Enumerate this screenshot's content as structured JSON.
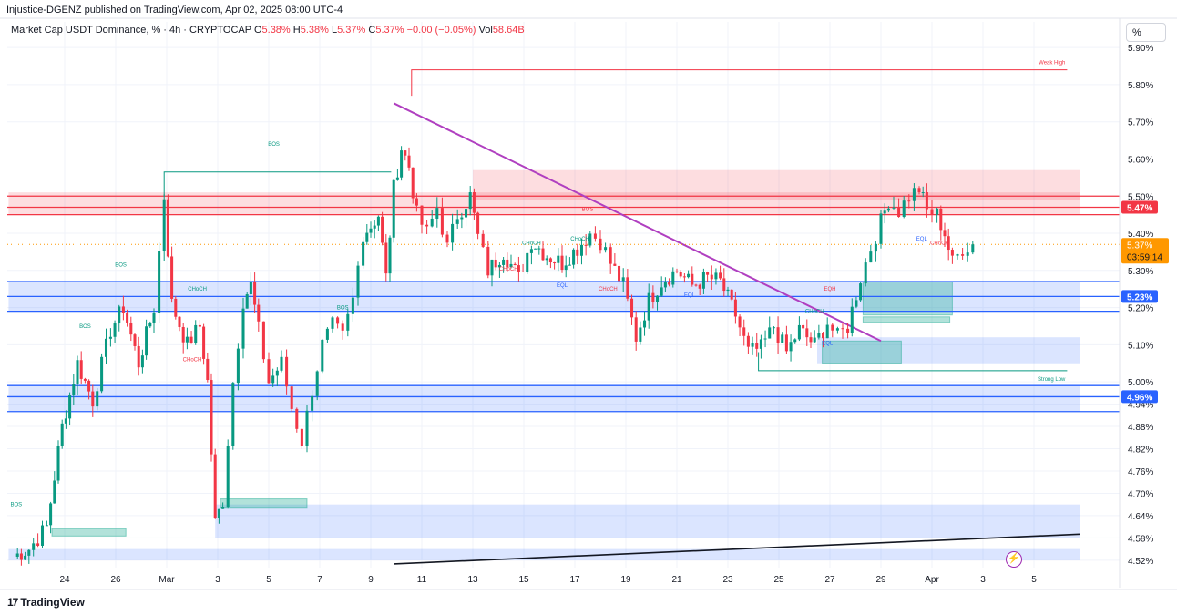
{
  "header": {
    "published": "Injustice-DGENZ published on TradingView.com, Apr 02, 2025 08:00 UTC-4"
  },
  "legend": {
    "title": "Market Cap USDT Dominance, % · 4h · CRYPTOCAP",
    "o_label": "O",
    "o_value": "5.38%",
    "h_label": "H",
    "h_value": "5.38%",
    "l_label": "L",
    "l_value": "5.37%",
    "c_label": "C",
    "c_value": "5.37%",
    "change": "−0.00 (−0.05%)",
    "vol_label": "Vol",
    "vol_value": "58.64B"
  },
  "scale_button": "%",
  "footer": {
    "logo_text": "TradingView",
    "logo_mark": "17"
  },
  "colors": {
    "up": "#089981",
    "down": "#f23645",
    "supply_zone": "#f23645",
    "demand_zone": "#2962ff",
    "trendline": "#b03fc0",
    "support_line": "#131722",
    "price_badge": "#f23645",
    "current_badge": "#ff9800",
    "blue_badge": "#2962ff"
  },
  "chart_data": {
    "type": "candlestick",
    "symbol": "USDT.D",
    "timeframe": "4h",
    "ylim": [
      4.5,
      5.92
    ],
    "y_ticks": [
      {
        "v": 4.52,
        "label": "4.52%"
      },
      {
        "v": 4.58,
        "label": "4.58%"
      },
      {
        "v": 4.64,
        "label": "4.64%"
      },
      {
        "v": 4.7,
        "label": "4.70%"
      },
      {
        "v": 4.76,
        "label": "4.76%"
      },
      {
        "v": 4.82,
        "label": "4.82%"
      },
      {
        "v": 4.88,
        "label": "4.88%"
      },
      {
        "v": 4.94,
        "label": "4.94%"
      },
      {
        "v": 5.0,
        "label": "5.00%"
      },
      {
        "v": 5.1,
        "label": "5.10%"
      },
      {
        "v": 5.2,
        "label": "5.20%"
      },
      {
        "v": 5.3,
        "label": "5.30%"
      },
      {
        "v": 5.4,
        "label": "5.40%"
      },
      {
        "v": 5.5,
        "label": "5.50%"
      },
      {
        "v": 5.6,
        "label": "5.60%"
      },
      {
        "v": 5.7,
        "label": "5.70%"
      },
      {
        "v": 5.8,
        "label": "5.80%"
      },
      {
        "v": 5.9,
        "label": "5.90%"
      }
    ],
    "x_ticks": [
      {
        "day": 24,
        "label": "24"
      },
      {
        "day": 26,
        "label": "26"
      },
      {
        "day": 28,
        "label": "Mar"
      },
      {
        "day": 30,
        "label": "3"
      },
      {
        "day": 32,
        "label": "5"
      },
      {
        "day": 34,
        "label": "7"
      },
      {
        "day": 36,
        "label": "9"
      },
      {
        "day": 38,
        "label": "11"
      },
      {
        "day": 40,
        "label": "13"
      },
      {
        "day": 42,
        "label": "15"
      },
      {
        "day": 44,
        "label": "17"
      },
      {
        "day": 46,
        "label": "19"
      },
      {
        "day": 48,
        "label": "21"
      },
      {
        "day": 50,
        "label": "23"
      },
      {
        "day": 52,
        "label": "25"
      },
      {
        "day": 54,
        "label": "27"
      },
      {
        "day": 56,
        "label": "29"
      },
      {
        "day": 58,
        "label": "Apr"
      },
      {
        "day": 60,
        "label": "3"
      },
      {
        "day": 62,
        "label": "5"
      }
    ],
    "price_anchors": [
      [
        22.0,
        4.53
      ],
      [
        22.6,
        4.55
      ],
      [
        23.3,
        4.61
      ],
      [
        23.9,
        4.88
      ],
      [
        24.5,
        5.05
      ],
      [
        25.1,
        4.95
      ],
      [
        25.8,
        5.14
      ],
      [
        26.3,
        5.2
      ],
      [
        26.9,
        5.05
      ],
      [
        27.5,
        5.2
      ],
      [
        27.9,
        5.5
      ],
      [
        28.2,
        5.21
      ],
      [
        28.8,
        5.1
      ],
      [
        29.3,
        5.15
      ],
      [
        29.6,
        5.0
      ],
      [
        29.9,
        4.62
      ],
      [
        30.2,
        4.68
      ],
      [
        30.6,
        5.0
      ],
      [
        31.0,
        5.22
      ],
      [
        31.3,
        5.26
      ],
      [
        31.6,
        5.14
      ],
      [
        32.0,
        5.0
      ],
      [
        32.5,
        5.05
      ],
      [
        32.9,
        4.93
      ],
      [
        33.3,
        4.84
      ],
      [
        33.7,
        4.98
      ],
      [
        34.1,
        5.1
      ],
      [
        34.5,
        5.15
      ],
      [
        34.9,
        5.12
      ],
      [
        35.3,
        5.22
      ],
      [
        35.7,
        5.4
      ],
      [
        36.0,
        5.42
      ],
      [
        36.3,
        5.45
      ],
      [
        36.6,
        5.28
      ],
      [
        36.9,
        5.52
      ],
      [
        37.2,
        5.63
      ],
      [
        37.5,
        5.58
      ],
      [
        37.8,
        5.45
      ],
      [
        38.2,
        5.4
      ],
      [
        38.6,
        5.47
      ],
      [
        39.0,
        5.36
      ],
      [
        39.4,
        5.45
      ],
      [
        39.9,
        5.5
      ],
      [
        40.2,
        5.39
      ],
      [
        40.6,
        5.3
      ],
      [
        41.2,
        5.35
      ],
      [
        41.8,
        5.28
      ],
      [
        42.3,
        5.38
      ],
      [
        42.9,
        5.34
      ],
      [
        43.5,
        5.32
      ],
      [
        44.1,
        5.36
      ],
      [
        44.6,
        5.4
      ],
      [
        45.0,
        5.38
      ],
      [
        45.4,
        5.32
      ],
      [
        45.9,
        5.26
      ],
      [
        46.4,
        5.12
      ],
      [
        46.9,
        5.22
      ],
      [
        47.4,
        5.27
      ],
      [
        48.0,
        5.3
      ],
      [
        48.6,
        5.26
      ],
      [
        49.2,
        5.28
      ],
      [
        49.7,
        5.27
      ],
      [
        50.3,
        5.18
      ],
      [
        50.8,
        5.08
      ],
      [
        51.3,
        5.09
      ],
      [
        51.8,
        5.15
      ],
      [
        52.3,
        5.08
      ],
      [
        52.8,
        5.14
      ],
      [
        53.4,
        5.1
      ],
      [
        53.9,
        5.16
      ],
      [
        54.3,
        5.12
      ],
      [
        54.7,
        5.15
      ],
      [
        55.2,
        5.28
      ],
      [
        55.6,
        5.36
      ],
      [
        56.0,
        5.43
      ],
      [
        56.3,
        5.49
      ],
      [
        56.7,
        5.46
      ],
      [
        57.1,
        5.5
      ],
      [
        57.5,
        5.52
      ],
      [
        57.8,
        5.46
      ],
      [
        58.2,
        5.45
      ],
      [
        58.5,
        5.4
      ],
      [
        58.8,
        5.32
      ],
      [
        59.2,
        5.36
      ],
      [
        59.6,
        5.37
      ]
    ],
    "supply_zones": [
      {
        "y0": 5.45,
        "y1": 5.51,
        "x0": 21.8,
        "x1": 63.8
      },
      {
        "y0": 5.49,
        "y1": 5.57,
        "x0": 40.0,
        "x1": 63.8
      }
    ],
    "demand_zones": [
      {
        "y0": 5.19,
        "y1": 5.27,
        "x0": 21.8,
        "x1": 63.8
      },
      {
        "y0": 4.92,
        "y1": 4.99,
        "x0": 21.8,
        "x1": 63.8
      },
      {
        "y0": 4.58,
        "y1": 4.67,
        "x0": 29.9,
        "x1": 63.8
      },
      {
        "y0": 4.52,
        "y1": 4.55,
        "x0": 21.8,
        "x1": 63.8
      },
      {
        "y0": 5.05,
        "y1": 5.12,
        "x0": 53.5,
        "x1": 63.8
      }
    ],
    "green_zones": [
      {
        "y0": 5.05,
        "y1": 5.11,
        "x0": 53.7,
        "x1": 56.8
      },
      {
        "y0": 5.18,
        "y1": 5.27,
        "x0": 55.3,
        "x1": 58.8
      },
      {
        "y0": 5.16,
        "y1": 5.175,
        "x0": 55.3,
        "x1": 58.7
      },
      {
        "y0": 4.585,
        "y1": 4.605,
        "x0": 23.5,
        "x1": 26.4
      },
      {
        "y0": 4.66,
        "y1": 4.685,
        "x0": 30.1,
        "x1": 33.5
      }
    ],
    "horizontal_lines": [
      {
        "y": 5.5,
        "color": "#f23645"
      },
      {
        "y": 5.47,
        "color": "#f23645"
      },
      {
        "y": 5.45,
        "color": "#f23645"
      },
      {
        "y": 5.27,
        "color": "#2962ff"
      },
      {
        "y": 5.23,
        "color": "#2962ff"
      },
      {
        "y": 5.19,
        "color": "#2962ff"
      },
      {
        "y": 4.99,
        "color": "#2962ff"
      },
      {
        "y": 4.96,
        "color": "#2962ff"
      },
      {
        "y": 4.92,
        "color": "#2962ff"
      }
    ],
    "trendline": {
      "x0": 36.9,
      "y0": 5.75,
      "x1": 56.0,
      "y1": 5.11
    },
    "support_line": {
      "x0": 36.9,
      "y0": 4.51,
      "x1": 63.8,
      "y1": 4.59
    },
    "weak_high": {
      "y": 5.84,
      "x0": 37.6,
      "x1": 63.3,
      "label": "Weak High"
    },
    "strong_low": {
      "y": 5.03,
      "x0": 51.2,
      "x1": 63.3,
      "label": "Strong Low"
    },
    "annotations": [
      {
        "text": "BOS",
        "x": 32.2,
        "y": 5.635,
        "color": "#089981"
      },
      {
        "text": "BOS",
        "x": 22.1,
        "y": 4.665,
        "color": "#089981"
      },
      {
        "text": "BOS",
        "x": 24.8,
        "y": 5.145,
        "color": "#089981"
      },
      {
        "text": "BOS",
        "x": 26.2,
        "y": 5.31,
        "color": "#089981"
      },
      {
        "text": "BOS",
        "x": 34.9,
        "y": 5.195,
        "color": "#089981"
      },
      {
        "text": "BOS",
        "x": 44.5,
        "y": 5.46,
        "color": "#f23645"
      },
      {
        "text": "CHoCH",
        "x": 29.2,
        "y": 5.245,
        "color": "#089981"
      },
      {
        "text": "CHoCH",
        "x": 29.0,
        "y": 5.055,
        "color": "#f23645"
      },
      {
        "text": "CHoCH",
        "x": 42.3,
        "y": 5.37,
        "color": "#089981"
      },
      {
        "text": "CHoCH",
        "x": 44.2,
        "y": 5.38,
        "color": "#089981"
      },
      {
        "text": "CHoCH",
        "x": 41.4,
        "y": 5.3,
        "color": "#f23645"
      },
      {
        "text": "CHoCH",
        "x": 45.3,
        "y": 5.245,
        "color": "#f23645"
      },
      {
        "text": "CHoCH",
        "x": 53.4,
        "y": 5.185,
        "color": "#089981"
      },
      {
        "text": "CHoCH",
        "x": 58.3,
        "y": 5.37,
        "color": "#f23645"
      },
      {
        "text": "EQL",
        "x": 43.5,
        "y": 5.255,
        "color": "#2962ff"
      },
      {
        "text": "EQL",
        "x": 48.5,
        "y": 5.23,
        "color": "#2962ff"
      },
      {
        "text": "EQL",
        "x": 53.9,
        "y": 5.1,
        "color": "#2962ff"
      },
      {
        "text": "EQH",
        "x": 54.0,
        "y": 5.245,
        "color": "#f23645"
      },
      {
        "text": "EQL",
        "x": 57.6,
        "y": 5.38,
        "color": "#2962ff"
      }
    ],
    "current_price": {
      "value": 5.37,
      "label": "5.37%",
      "countdown": "03:59:14"
    },
    "level_badges": [
      {
        "value": 5.47,
        "label": "5.47%",
        "color": "#f23645"
      },
      {
        "value": 5.23,
        "label": "5.23%",
        "color": "#2962ff"
      },
      {
        "value": 4.96,
        "label": "4.96%",
        "color": "#2962ff"
      }
    ]
  }
}
